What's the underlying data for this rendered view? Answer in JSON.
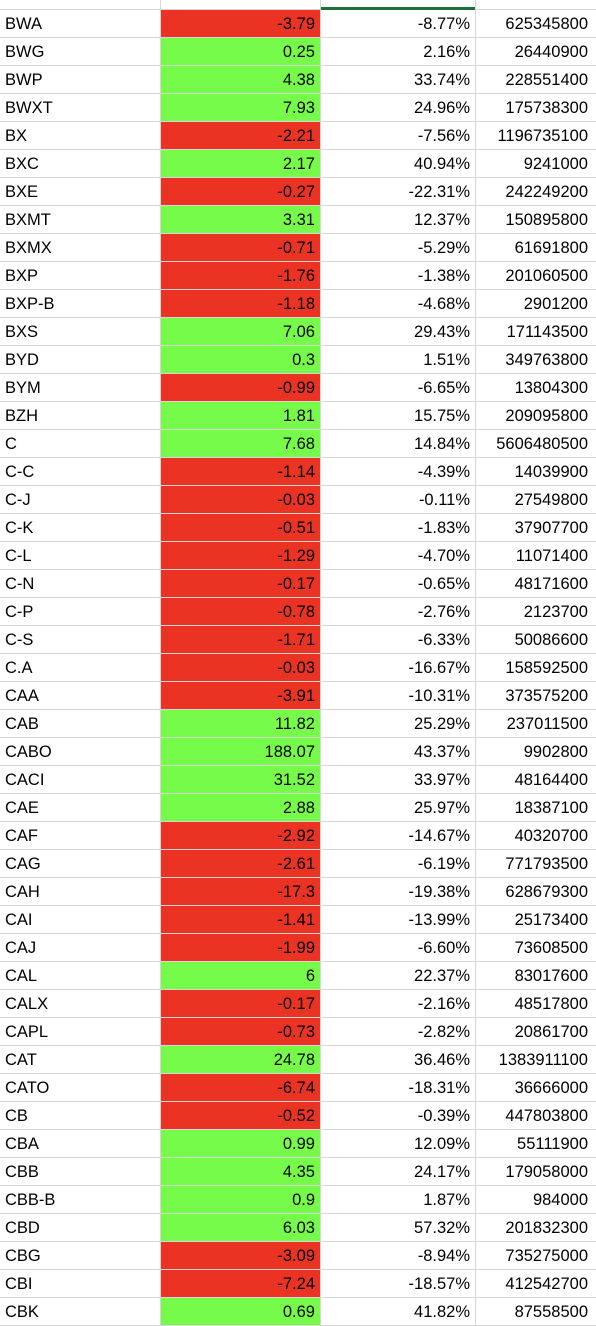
{
  "sheet": {
    "colors": {
      "positive_fill": "#76fb4a",
      "negative_fill": "#ea3323",
      "gridline": "#d6d6d6",
      "selection": "#1f6f3b"
    },
    "rows": [
      {
        "symbol": "BWA",
        "change": "-3.79",
        "pct": "-8.77%",
        "volume": "625345800",
        "sign": "neg"
      },
      {
        "symbol": "BWG",
        "change": "0.25",
        "pct": "2.16%",
        "volume": "26440900",
        "sign": "pos"
      },
      {
        "symbol": "BWP",
        "change": "4.38",
        "pct": "33.74%",
        "volume": "228551400",
        "sign": "pos"
      },
      {
        "symbol": "BWXT",
        "change": "7.93",
        "pct": "24.96%",
        "volume": "175738300",
        "sign": "pos"
      },
      {
        "symbol": "BX",
        "change": "-2.21",
        "pct": "-7.56%",
        "volume": "1196735100",
        "sign": "neg"
      },
      {
        "symbol": "BXC",
        "change": "2.17",
        "pct": "40.94%",
        "volume": "9241000",
        "sign": "pos"
      },
      {
        "symbol": "BXE",
        "change": "-0.27",
        "pct": "-22.31%",
        "volume": "242249200",
        "sign": "neg"
      },
      {
        "symbol": "BXMT",
        "change": "3.31",
        "pct": "12.37%",
        "volume": "150895800",
        "sign": "pos"
      },
      {
        "symbol": "BXMX",
        "change": "-0.71",
        "pct": "-5.29%",
        "volume": "61691800",
        "sign": "neg"
      },
      {
        "symbol": "BXP",
        "change": "-1.76",
        "pct": "-1.38%",
        "volume": "201060500",
        "sign": "neg"
      },
      {
        "symbol": "BXP-B",
        "change": "-1.18",
        "pct": "-4.68%",
        "volume": "2901200",
        "sign": "neg"
      },
      {
        "symbol": "BXS",
        "change": "7.06",
        "pct": "29.43%",
        "volume": "171143500",
        "sign": "pos"
      },
      {
        "symbol": "BYD",
        "change": "0.3",
        "pct": "1.51%",
        "volume": "349763800",
        "sign": "pos"
      },
      {
        "symbol": "BYM",
        "change": "-0.99",
        "pct": "-6.65%",
        "volume": "13804300",
        "sign": "neg"
      },
      {
        "symbol": "BZH",
        "change": "1.81",
        "pct": "15.75%",
        "volume": "209095800",
        "sign": "pos"
      },
      {
        "symbol": "C",
        "change": "7.68",
        "pct": "14.84%",
        "volume": "5606480500",
        "sign": "pos"
      },
      {
        "symbol": "C-C",
        "change": "-1.14",
        "pct": "-4.39%",
        "volume": "14039900",
        "sign": "neg"
      },
      {
        "symbol": "C-J",
        "change": "-0.03",
        "pct": "-0.11%",
        "volume": "27549800",
        "sign": "neg"
      },
      {
        "symbol": "C-K",
        "change": "-0.51",
        "pct": "-1.83%",
        "volume": "37907700",
        "sign": "neg"
      },
      {
        "symbol": "C-L",
        "change": "-1.29",
        "pct": "-4.70%",
        "volume": "11071400",
        "sign": "neg"
      },
      {
        "symbol": "C-N",
        "change": "-0.17",
        "pct": "-0.65%",
        "volume": "48171600",
        "sign": "neg"
      },
      {
        "symbol": "C-P",
        "change": "-0.78",
        "pct": "-2.76%",
        "volume": "2123700",
        "sign": "neg"
      },
      {
        "symbol": "C-S",
        "change": "-1.71",
        "pct": "-6.33%",
        "volume": "50086600",
        "sign": "neg"
      },
      {
        "symbol": "C.A",
        "change": "-0.03",
        "pct": "-16.67%",
        "volume": "158592500",
        "sign": "neg"
      },
      {
        "symbol": "CAA",
        "change": "-3.91",
        "pct": "-10.31%",
        "volume": "373575200",
        "sign": "neg"
      },
      {
        "symbol": "CAB",
        "change": "11.82",
        "pct": "25.29%",
        "volume": "237011500",
        "sign": "pos"
      },
      {
        "symbol": "CABO",
        "change": "188.07",
        "pct": "43.37%",
        "volume": "9902800",
        "sign": "pos"
      },
      {
        "symbol": "CACI",
        "change": "31.52",
        "pct": "33.97%",
        "volume": "48164400",
        "sign": "pos"
      },
      {
        "symbol": "CAE",
        "change": "2.88",
        "pct": "25.97%",
        "volume": "18387100",
        "sign": "pos"
      },
      {
        "symbol": "CAF",
        "change": "-2.92",
        "pct": "-14.67%",
        "volume": "40320700",
        "sign": "neg"
      },
      {
        "symbol": "CAG",
        "change": "-2.61",
        "pct": "-6.19%",
        "volume": "771793500",
        "sign": "neg"
      },
      {
        "symbol": "CAH",
        "change": "-17.3",
        "pct": "-19.38%",
        "volume": "628679300",
        "sign": "neg"
      },
      {
        "symbol": "CAI",
        "change": "-1.41",
        "pct": "-13.99%",
        "volume": "25173400",
        "sign": "neg"
      },
      {
        "symbol": "CAJ",
        "change": "-1.99",
        "pct": "-6.60%",
        "volume": "73608500",
        "sign": "neg"
      },
      {
        "symbol": "CAL",
        "change": "6",
        "pct": "22.37%",
        "volume": "83017600",
        "sign": "pos"
      },
      {
        "symbol": "CALX",
        "change": "-0.17",
        "pct": "-2.16%",
        "volume": "48517800",
        "sign": "neg"
      },
      {
        "symbol": "CAPL",
        "change": "-0.73",
        "pct": "-2.82%",
        "volume": "20861700",
        "sign": "neg"
      },
      {
        "symbol": "CAT",
        "change": "24.78",
        "pct": "36.46%",
        "volume": "1383911100",
        "sign": "pos"
      },
      {
        "symbol": "CATO",
        "change": "-6.74",
        "pct": "-18.31%",
        "volume": "36666000",
        "sign": "neg"
      },
      {
        "symbol": "CB",
        "change": "-0.52",
        "pct": "-0.39%",
        "volume": "447803800",
        "sign": "neg"
      },
      {
        "symbol": "CBA",
        "change": "0.99",
        "pct": "12.09%",
        "volume": "55111900",
        "sign": "pos"
      },
      {
        "symbol": "CBB",
        "change": "4.35",
        "pct": "24.17%",
        "volume": "179058000",
        "sign": "pos"
      },
      {
        "symbol": "CBB-B",
        "change": "0.9",
        "pct": "1.87%",
        "volume": "984000",
        "sign": "pos"
      },
      {
        "symbol": "CBD",
        "change": "6.03",
        "pct": "57.32%",
        "volume": "201832300",
        "sign": "pos"
      },
      {
        "symbol": "CBG",
        "change": "-3.09",
        "pct": "-8.94%",
        "volume": "735275000",
        "sign": "neg"
      },
      {
        "symbol": "CBI",
        "change": "-7.24",
        "pct": "-18.57%",
        "volume": "412542700",
        "sign": "neg"
      },
      {
        "symbol": "CBK",
        "change": "0.69",
        "pct": "41.82%",
        "volume": "87558500",
        "sign": "pos"
      }
    ]
  }
}
